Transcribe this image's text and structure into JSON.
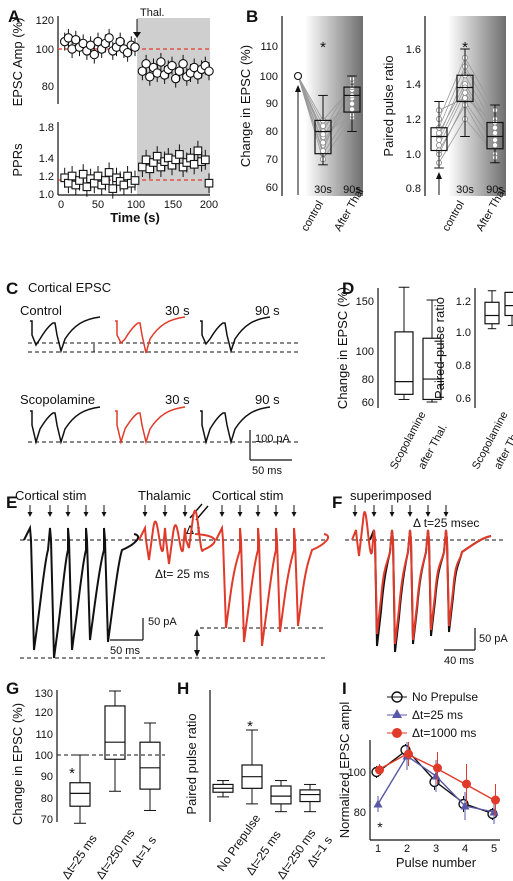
{
  "panels": {
    "A": {
      "letter": "A",
      "xlabel": "Time (s)",
      "ylabel_top": "EPSC Amp (%)",
      "ylabel_bottom": "PPRs",
      "annotation": "Thal.",
      "xticks": [
        "0",
        "50",
        "100",
        "150",
        "200"
      ],
      "yticks_top": [
        "120",
        "100",
        "80"
      ],
      "yticks_bottom": [
        "1.8",
        "1.4",
        "1.2",
        "1.0"
      ]
    },
    "B": {
      "letter": "B",
      "ylabel_left": "Change in EPSC (%)",
      "ylabel_right": "Paired pulse ratio",
      "xlabels": [
        "control",
        "After Thal"
      ],
      "time_labels": [
        "30s",
        "90s"
      ],
      "star": "*",
      "yticks_left": [
        "110",
        "100",
        "90",
        "80",
        "70",
        "60"
      ],
      "yticks_right": [
        "1.6",
        "1.4",
        "1.2",
        "1.0",
        "0.8"
      ]
    },
    "C": {
      "letter": "C",
      "title": "Cortical EPSC",
      "row1": "Control",
      "row2": "Scopolamine",
      "t30": "30 s",
      "t90": "90 s",
      "scale_y": "100 pA",
      "scale_x": "50 ms"
    },
    "D": {
      "letter": "D",
      "ylabel_left": "Change in EPSC (%)",
      "ylabel_right": "Paired-pulse ratio",
      "xlabels": [
        "Scopolamine",
        "after Thal."
      ],
      "yticks_left": [
        "150",
        "100",
        "80",
        "60"
      ],
      "yticks_right": [
        "1.2",
        "1.0",
        "0.8",
        "0.6"
      ]
    },
    "E": {
      "letter": "E",
      "label1": "Cortical stim",
      "label2": "Thalamic",
      "label3": "Cortical stim",
      "dt": "Δ t",
      "dt25": "Δt= 25 ms",
      "scale_y": "50 pA",
      "scale_x": "50 ms"
    },
    "F": {
      "letter": "F",
      "label": "superimposed",
      "dt": "Δ t=25 msec",
      "scale_y": "50 pA",
      "scale_x": "40 ms"
    },
    "G": {
      "letter": "G",
      "ylabel": "Change in EPSC (%)",
      "xlabels": [
        "Δt=25 ms",
        "Δt=250 ms",
        "Δt=1 s"
      ],
      "star": "*",
      "yticks": [
        "130",
        "120",
        "110",
        "100",
        "90",
        "80",
        "70"
      ]
    },
    "H": {
      "letter": "H",
      "ylabel": "Paired pulse ratio",
      "xlabels": [
        "No Prepulse",
        "Δt=25 ms",
        "Δt=250 ms",
        "Δt=1 s"
      ],
      "star": "*"
    },
    "I": {
      "letter": "I",
      "xlabel": "Pulse number",
      "ylabel": "Normalized EPSC ampl",
      "star": "*",
      "legend": [
        "No Prepulse",
        "Δt=25 ms",
        "Δt=1000 ms"
      ],
      "xticks": [
        "1",
        "2",
        "3",
        "4",
        "5"
      ],
      "yticks": [
        "100",
        "80"
      ]
    }
  },
  "colors": {
    "black": "#111111",
    "red": "#e03a2a",
    "blue": "#5a57a6",
    "gray": "#c8c8c8"
  },
  "chart_data": [
    {
      "panel": "A-top",
      "type": "scatter",
      "xlabel": "Time (s)",
      "ylabel": "EPSC Amp (%)",
      "xlim": [
        0,
        200
      ],
      "ylim": [
        70,
        125
      ],
      "x": [
        5,
        10,
        15,
        20,
        25,
        30,
        35,
        40,
        45,
        50,
        55,
        60,
        65,
        70,
        75,
        80,
        85,
        90,
        95,
        100,
        110,
        115,
        120,
        125,
        130,
        135,
        140,
        145,
        150,
        155,
        160,
        165,
        170,
        175,
        180,
        185,
        190,
        195,
        200
      ],
      "y": [
        104,
        106,
        100,
        105,
        101,
        103,
        99,
        102,
        97,
        104,
        100,
        103,
        106,
        99,
        101,
        104,
        100,
        98,
        102,
        101,
        88,
        92,
        85,
        90,
        87,
        93,
        86,
        89,
        91,
        84,
        88,
        92,
        85,
        87,
        90,
        86,
        89,
        91,
        88
      ]
    },
    {
      "panel": "A-bottom",
      "type": "scatter",
      "xlabel": "Time (s)",
      "ylabel": "PPRs",
      "xlim": [
        0,
        200
      ],
      "ylim": [
        0.9,
        1.8
      ],
      "x": [
        5,
        10,
        15,
        20,
        25,
        30,
        35,
        40,
        45,
        50,
        55,
        60,
        65,
        70,
        75,
        80,
        85,
        90,
        95,
        100,
        110,
        115,
        120,
        125,
        130,
        135,
        140,
        145,
        150,
        155,
        160,
        165,
        170,
        175,
        180,
        185,
        190,
        195,
        200
      ],
      "y": [
        1.18,
        1.12,
        1.2,
        1.1,
        1.15,
        1.22,
        1.08,
        1.17,
        1.12,
        1.2,
        1.1,
        1.15,
        1.24,
        1.06,
        1.18,
        1.14,
        1.1,
        1.2,
        1.12,
        1.15,
        1.3,
        1.38,
        1.28,
        1.35,
        1.42,
        1.3,
        1.36,
        1.4,
        1.32,
        1.38,
        1.44,
        1.3,
        1.35,
        1.4,
        1.33,
        1.48,
        1.36,
        1.38,
        1.12
      ]
    },
    {
      "panel": "B-left",
      "type": "box",
      "ylabel": "Change in EPSC (%)",
      "categories": [
        "control",
        "30s",
        "90s"
      ],
      "ylim": [
        57,
        115
      ],
      "stats": [
        {
          "min": 100,
          "q1": 100,
          "median": 100,
          "q3": 100,
          "max": 100
        },
        {
          "min": 68,
          "q1": 72,
          "median": 80,
          "q3": 84,
          "max": 93
        },
        {
          "min": 80,
          "q1": 87,
          "median": 93,
          "q3": 96,
          "max": 100
        }
      ]
    },
    {
      "panel": "B-right",
      "type": "box",
      "ylabel": "Paired pulse ratio",
      "categories": [
        "control",
        "30s",
        "90s"
      ],
      "ylim": [
        0.77,
        1.75
      ],
      "stats": [
        {
          "min": 0.92,
          "q1": 1.02,
          "median": 1.1,
          "q3": 1.15,
          "max": 1.3
        },
        {
          "min": 1.1,
          "q1": 1.3,
          "median": 1.38,
          "q3": 1.45,
          "max": 1.6
        },
        {
          "min": 0.95,
          "q1": 1.03,
          "median": 1.1,
          "q3": 1.18,
          "max": 1.28
        }
      ]
    },
    {
      "panel": "D-left",
      "type": "box",
      "ylabel": "Change in EPSC (%)",
      "categories": [
        "Scopolamine",
        "after Thal."
      ],
      "ylim": [
        58,
        160
      ],
      "stats": [
        {
          "min": 62,
          "q1": 66,
          "median": 76,
          "q3": 115,
          "max": 150
        },
        {
          "min": 60,
          "q1": 62,
          "median": 78,
          "q3": 110,
          "max": 140
        }
      ]
    },
    {
      "panel": "D-right",
      "type": "box",
      "ylabel": "Paired-pulse ratio",
      "categories": [
        "Scopolamine",
        "after Thal."
      ],
      "ylim": [
        0.58,
        1.25
      ],
      "stats": [
        {
          "min": 1.02,
          "q1": 1.05,
          "median": 1.1,
          "q3": 1.18,
          "max": 1.25
        },
        {
          "min": 1.04,
          "q1": 1.1,
          "median": 1.16,
          "q3": 1.24,
          "max": 1.24
        }
      ]
    },
    {
      "panel": "G",
      "type": "box",
      "ylabel": "Change in EPSC (%)",
      "categories": [
        "Δt=25 ms",
        "Δt=250 ms",
        "Δt=1 s"
      ],
      "ylim": [
        65,
        135
      ],
      "stats": [
        {
          "min": 68,
          "q1": 76,
          "median": 82,
          "q3": 87,
          "max": 100
        },
        {
          "min": 83,
          "q1": 98,
          "median": 106,
          "q3": 123,
          "max": 130
        },
        {
          "min": 74,
          "q1": 84,
          "median": 94,
          "q3": 106,
          "max": 115
        }
      ]
    },
    {
      "panel": "H",
      "type": "box",
      "ylabel": "Paired pulse ratio",
      "categories": [
        "No Prepulse",
        "Δt=25 ms",
        "Δt=250 ms",
        "Δt=1 s"
      ],
      "stats": [
        {
          "min": 1.04,
          "q1": 1.1,
          "median": 1.15,
          "q3": 1.2,
          "max": 1.25
        },
        {
          "min": 0.95,
          "q1": 1.15,
          "median": 1.3,
          "q3": 1.45,
          "max": 1.9
        },
        {
          "min": 0.85,
          "q1": 0.95,
          "median": 1.05,
          "q3": 1.18,
          "max": 1.25
        },
        {
          "min": 0.85,
          "q1": 0.98,
          "median": 1.07,
          "q3": 1.13,
          "max": 1.2
        }
      ]
    },
    {
      "panel": "I",
      "type": "line",
      "xlabel": "Pulse number",
      "ylabel": "Normalized EPSC ampl",
      "x": [
        1,
        2,
        3,
        4,
        5
      ],
      "ylim": [
        70,
        118
      ],
      "series": [
        {
          "name": "No Prepulse",
          "values": [
            100,
            111,
            95,
            84,
            79
          ],
          "err": [
            3,
            3,
            4,
            4,
            3
          ]
        },
        {
          "name": "Δt=25 ms",
          "values": [
            84,
            108,
            98,
            83,
            80
          ],
          "err": [
            4,
            7,
            8,
            7,
            6
          ]
        },
        {
          "name": "Δt=1000 ms",
          "values": [
            101,
            109,
            102,
            94,
            86
          ],
          "err": [
            3,
            6,
            8,
            10,
            8
          ]
        }
      ]
    }
  ]
}
